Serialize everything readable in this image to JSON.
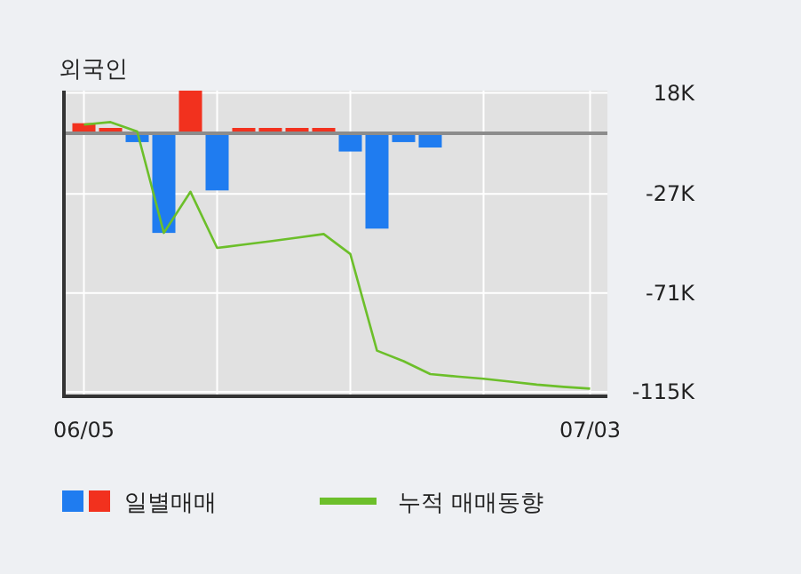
{
  "chart_data": {
    "type": "bar",
    "title": "외국인",
    "categories": [
      "06/05",
      null,
      null,
      null,
      null,
      null,
      null,
      null,
      null,
      null,
      null,
      null,
      null,
      null,
      null,
      null,
      null,
      null,
      null,
      "07/03"
    ],
    "series": [
      {
        "name": "일별매매",
        "colors": [
          "#f2311e",
          "#f2311e",
          "#1f7cf0",
          "#1f7cf0",
          "#f2311e",
          "#1f7cf0",
          "#f2311e",
          "#f2311e",
          "#f2311e",
          "#f2311e",
          "#1f7cf0",
          "#1f7cf0",
          "#1f7cf0",
          "#1f7cf0",
          null,
          null,
          null,
          null,
          null,
          null
        ],
        "values": [
          4.5,
          2.4,
          -3.9,
          -44.3,
          19,
          -25.4,
          2.4,
          2.4,
          2.4,
          2.4,
          -8.1,
          -42.4,
          -3.9,
          -6.3,
          null,
          null,
          null,
          null,
          null,
          null
        ]
      },
      {
        "name": "누적 매매동향",
        "type": "line",
        "color": "#6cbf2a",
        "values": [
          3.9,
          5.0,
          0.8,
          -44.3,
          -26,
          -51,
          -49.5,
          -48,
          -46.4,
          -44.8,
          -53.7,
          -96.7,
          -101.4,
          -107.1,
          -108.2,
          -109.2,
          -110.5,
          -111.8,
          -112.8,
          -113.6
        ]
      }
    ],
    "ylim": [
      -117,
      19
    ],
    "yticks": [
      {
        "value": 18,
        "label": "18K"
      },
      {
        "value": -27,
        "label": "-27K"
      },
      {
        "value": -71,
        "label": "-71K"
      },
      {
        "value": -115,
        "label": "-115K"
      }
    ],
    "grid": true,
    "legend": "bottom"
  }
}
